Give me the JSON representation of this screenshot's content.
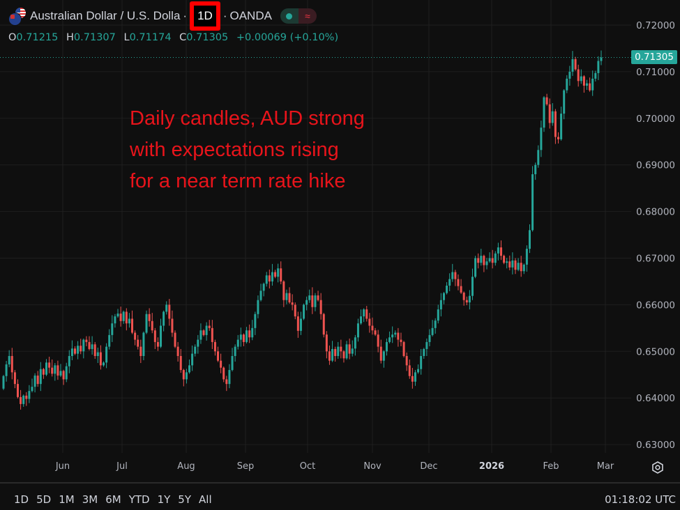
{
  "header": {
    "symbol_title": "Australian Dollar / U.S. Dolla",
    "interval": "1D",
    "exchange": "OANDA",
    "market_status": "open",
    "ohlc": {
      "o_label": "O",
      "o": "0.71215",
      "h_label": "H",
      "h": "0.71307",
      "l_label": "L",
      "l": "0.71174",
      "c_label": "C",
      "c": "0.71305",
      "change": "+0.00069 (+0.10%)"
    }
  },
  "annotation": [
    "Daily candles, AUD strong",
    "with expectations rising",
    "for a near term rate hike"
  ],
  "colors": {
    "up": "#26a69a",
    "down": "#ef5350",
    "annotation": "#e8141b",
    "highlight_box": "#ff0000",
    "background": "#0f0f0f"
  },
  "bottom_bar": {
    "ranges": [
      "1D",
      "5D",
      "1M",
      "3M",
      "6M",
      "YTD",
      "1Y",
      "5Y",
      "All"
    ],
    "clock": "01:18:02 UTC",
    "settings_icon": "gear-icon"
  },
  "chart_data": {
    "type": "candlestick",
    "symbol": "AUDUSD",
    "interval": "1D",
    "x_tick_labels": [
      "Jun",
      "Jul",
      "Aug",
      "Sep",
      "Oct",
      "Nov",
      "Dec",
      "2026",
      "Feb",
      "Mar"
    ],
    "y_tick_labels": [
      "0.72000",
      "0.71000",
      "0.70000",
      "0.69000",
      "0.68000",
      "0.67000",
      "0.66000",
      "0.65000",
      "0.64000",
      "0.63000"
    ],
    "ylim": [
      0.6275,
      0.7225
    ],
    "last_price": "0.71305",
    "grid": true,
    "first_open": 0.642,
    "closes": [
      0.6447,
      0.6472,
      0.649,
      0.6455,
      0.643,
      0.6402,
      0.6387,
      0.6405,
      0.6398,
      0.6415,
      0.6424,
      0.6448,
      0.643,
      0.6462,
      0.645,
      0.6476,
      0.6465,
      0.6452,
      0.647,
      0.6448,
      0.6458,
      0.644,
      0.6468,
      0.649,
      0.6506,
      0.6495,
      0.6512,
      0.65,
      0.6525,
      0.652,
      0.6505,
      0.6515,
      0.649,
      0.6498,
      0.647,
      0.6476,
      0.651,
      0.6535,
      0.656,
      0.6575,
      0.6581,
      0.6565,
      0.6585,
      0.656,
      0.657,
      0.654,
      0.6525,
      0.651,
      0.649,
      0.654,
      0.658,
      0.6565,
      0.6545,
      0.652,
      0.651,
      0.6555,
      0.6585,
      0.66,
      0.657,
      0.654,
      0.651,
      0.649,
      0.646,
      0.644,
      0.6455,
      0.647,
      0.6495,
      0.651,
      0.6525,
      0.6545,
      0.6535,
      0.6555,
      0.655,
      0.652,
      0.65,
      0.648,
      0.6465,
      0.644,
      0.643,
      0.646,
      0.649,
      0.651,
      0.6525,
      0.6536,
      0.652,
      0.6545,
      0.653,
      0.655,
      0.658,
      0.661,
      0.663,
      0.6645,
      0.6663,
      0.665,
      0.667,
      0.666,
      0.6678,
      0.665,
      0.661,
      0.6625,
      0.6605,
      0.66,
      0.6575,
      0.6544,
      0.657,
      0.66,
      0.661,
      0.662,
      0.6595,
      0.662,
      0.661,
      0.658,
      0.6536,
      0.65,
      0.648,
      0.6505,
      0.649,
      0.651,
      0.65,
      0.6485,
      0.6515,
      0.6495,
      0.6506,
      0.653,
      0.656,
      0.6575,
      0.659,
      0.657,
      0.6555,
      0.6545,
      0.6536,
      0.651,
      0.648,
      0.65,
      0.652,
      0.653,
      0.6536,
      0.654,
      0.6525,
      0.652,
      0.649,
      0.647,
      0.6447,
      0.6435,
      0.6455,
      0.6462,
      0.649,
      0.6505,
      0.652,
      0.6535,
      0.655,
      0.6566,
      0.659,
      0.661,
      0.6625,
      0.6641,
      0.6655,
      0.667,
      0.6655,
      0.664,
      0.6626,
      0.661,
      0.6605,
      0.6619,
      0.666,
      0.67,
      0.669,
      0.6705,
      0.6685,
      0.6693,
      0.67,
      0.669,
      0.671,
      0.6723,
      0.6705,
      0.669,
      0.6693,
      0.668,
      0.6695,
      0.6675,
      0.669,
      0.6672,
      0.6686,
      0.672,
      0.676,
      0.688,
      0.69,
      0.6932,
      0.698,
      0.7045,
      0.703,
      0.699,
      0.7015,
      0.696,
      0.6955,
      0.701,
      0.706,
      0.7085,
      0.71,
      0.7127,
      0.7105,
      0.708,
      0.709,
      0.707,
      0.7075,
      0.706,
      0.7085,
      0.7097,
      0.7123,
      0.71305
    ]
  }
}
